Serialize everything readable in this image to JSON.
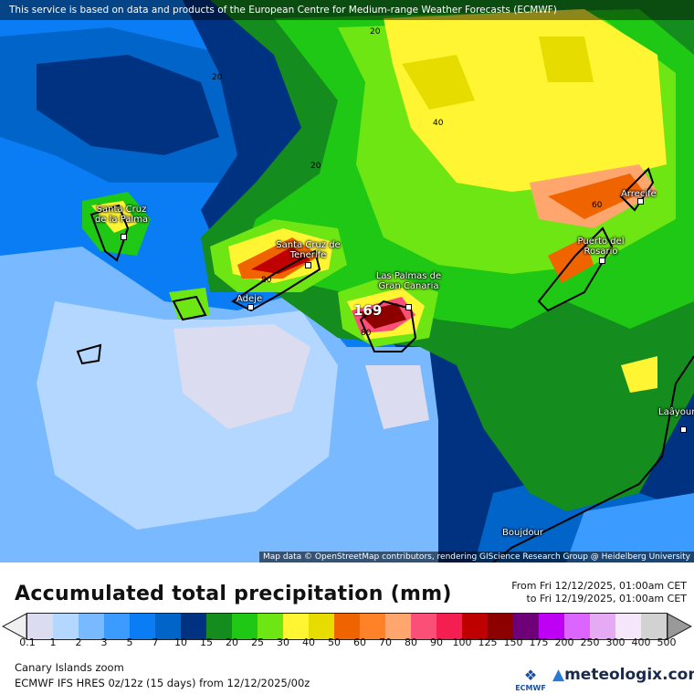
{
  "banner": "This service is based on data and products of the European Centre for Medium-range Weather Forecasts (ECMWF)",
  "attribution": "Map data © OpenStreetMap contributors, rendering GIScience Research Group @ Heidelberg University",
  "cities": [
    {
      "name": "Santa Cruz de la Palma"
    },
    {
      "name": "Santa Cruz de Tenerife"
    },
    {
      "name": "Adeje"
    },
    {
      "name": "Las Palmas de Gran Canaria"
    },
    {
      "name": "Puerto del Rosario"
    },
    {
      "name": "Arrecife"
    },
    {
      "name": "Laâyoune"
    },
    {
      "name": "Boujdour"
    }
  ],
  "contour_labels": [
    "20",
    "20",
    "20",
    "40",
    "60",
    "80",
    "80",
    "169"
  ],
  "legend": {
    "title": "Accumulated total precipitation (mm)",
    "from": "From Fri 12/12/2025, 01:00am CET",
    "to": "to Fri 12/19/2025, 01:00am CET",
    "ticks": [
      "0.1",
      "1",
      "2",
      "3",
      "5",
      "7",
      "10",
      "15",
      "20",
      "25",
      "30",
      "40",
      "50",
      "60",
      "70",
      "80",
      "90",
      "100",
      "125",
      "150",
      "175",
      "200",
      "250",
      "300",
      "400",
      "500"
    ],
    "colors": [
      "#dcdcf0",
      "#b4d7ff",
      "#78b9ff",
      "#3c9bff",
      "#0a7df5",
      "#0064c8",
      "#003282",
      "#148c1e",
      "#1ec814",
      "#6ee614",
      "#fff532",
      "#e6dc00",
      "#f06400",
      "#ff8228",
      "#ffa56e",
      "#fa5078",
      "#f51e50",
      "#be0000",
      "#8c0000",
      "#6e0078",
      "#be00f5",
      "#dc64ff",
      "#e6aaf5",
      "#f5e6fa",
      "#d2d2d2"
    ],
    "under_color": "#f0f0f0",
    "over_color": "#999999"
  },
  "footer": {
    "region": "Canary Islands zoom",
    "model": "ECMWF IFS HRES 0z/12z (15 days) from  12/12/2025/00z",
    "ecmwf_logo": "ECMWF",
    "brand": "meteologix.com"
  }
}
